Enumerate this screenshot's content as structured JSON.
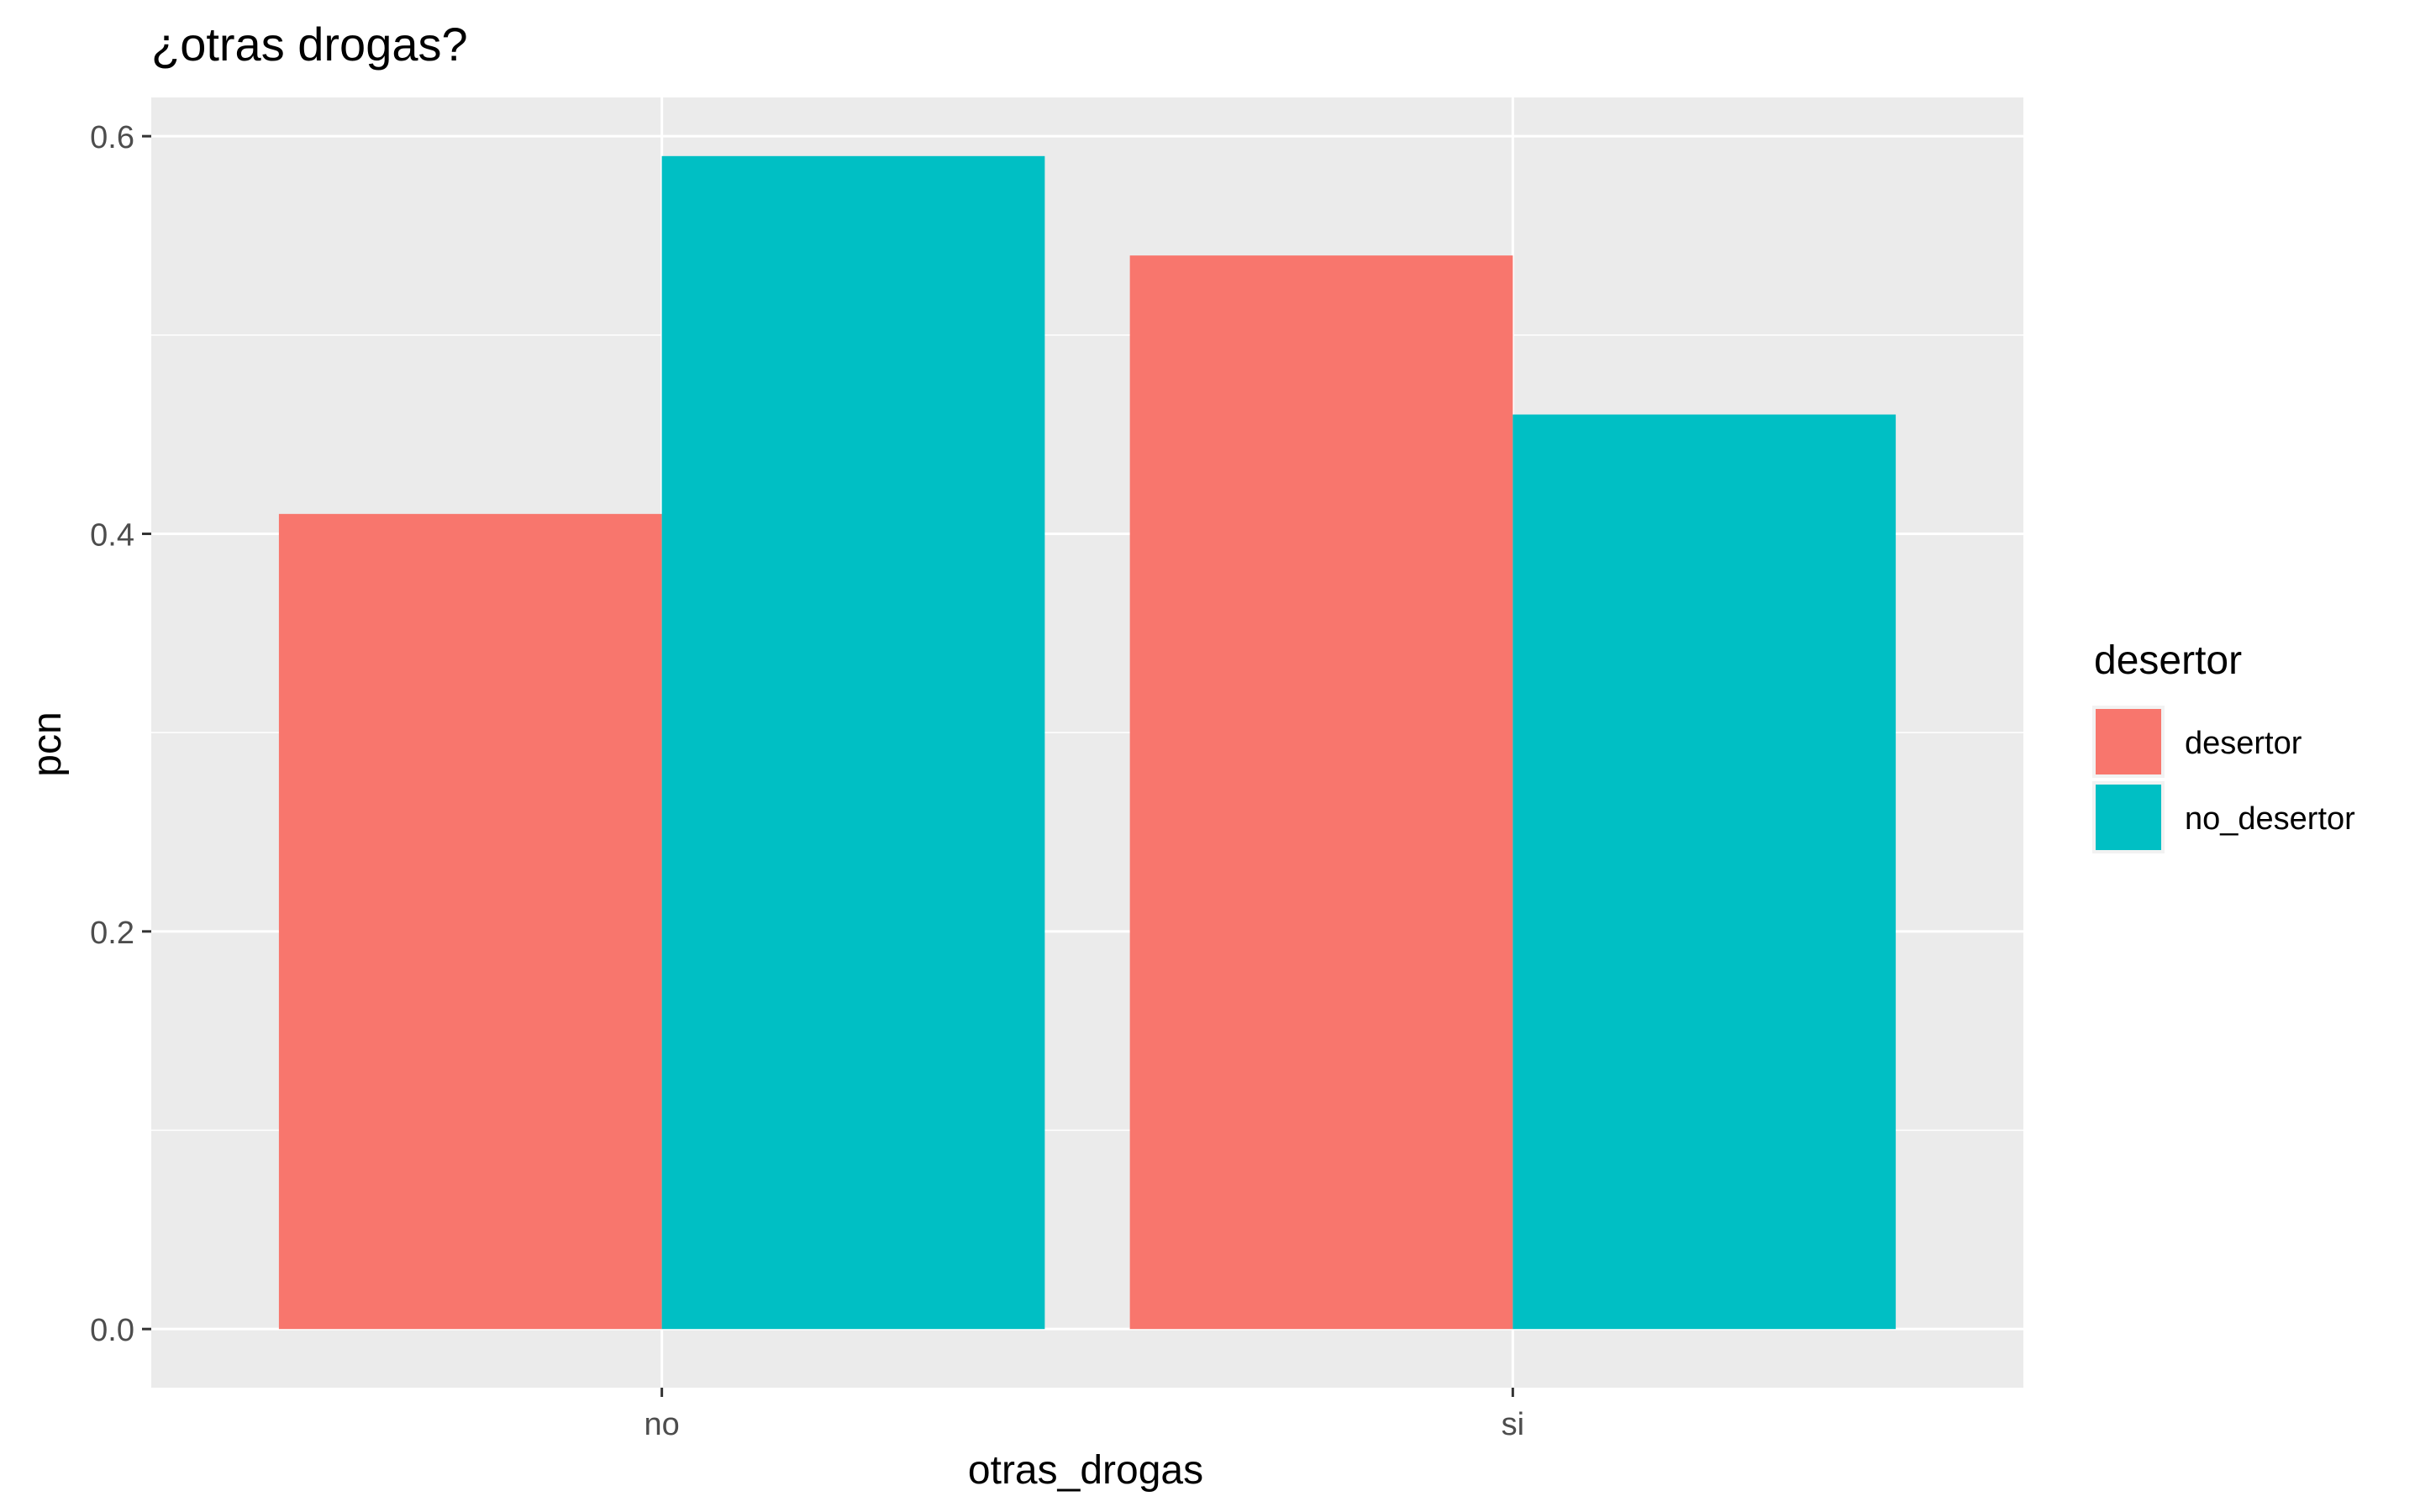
{
  "chart_data": {
    "type": "bar",
    "title": "¿otras drogas?",
    "xlabel": "otras_drogas",
    "ylabel": "pcn",
    "categories": [
      "no",
      "si"
    ],
    "series": [
      {
        "name": "desertor",
        "values": [
          0.41,
          0.54
        ],
        "color": "#F8766D"
      },
      {
        "name": "no_desertor",
        "values": [
          0.59,
          0.46
        ],
        "color": "#00BFC4"
      }
    ],
    "ylim": [
      -0.0295,
      0.6195
    ],
    "yticks": [
      0.0,
      0.2,
      0.4,
      0.6
    ],
    "ytick_labels": [
      "0.0",
      "0.2",
      "0.4",
      "0.6"
    ],
    "yminor": [
      0.1,
      0.3,
      0.5
    ],
    "legend": {
      "title": "desertor",
      "position": "right"
    },
    "grid": true,
    "panel_background": "#EBEBEB",
    "grid_color": "#FFFFFF"
  }
}
